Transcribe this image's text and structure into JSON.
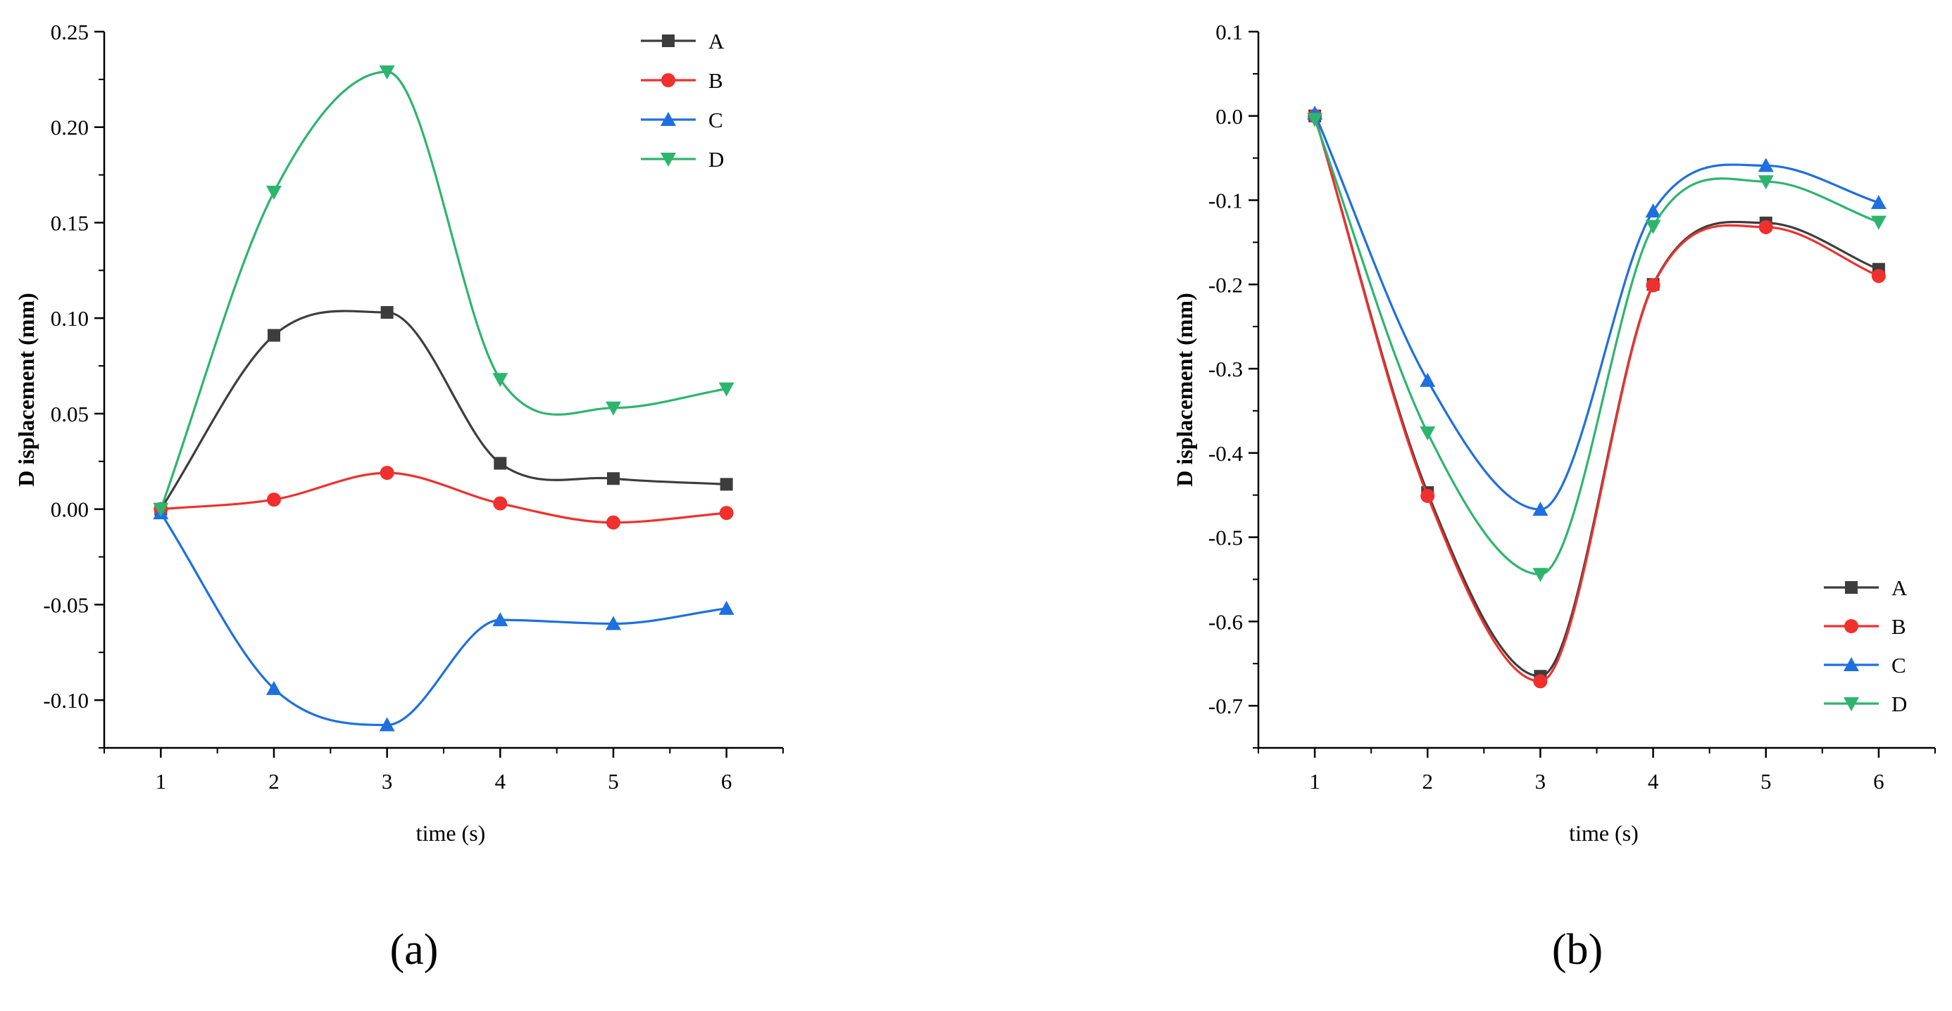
{
  "chart_data": [
    {
      "type": "line",
      "panel_label": "(a)",
      "x": [
        1,
        2,
        3,
        4,
        5,
        6
      ],
      "xlim": [
        0.5,
        6.5
      ],
      "ylim": [
        -0.125,
        0.25
      ],
      "xticks": [
        1,
        2,
        3,
        4,
        5,
        6
      ],
      "yticks": [
        -0.1,
        -0.05,
        0.0,
        0.05,
        0.1,
        0.15,
        0.2,
        0.25
      ],
      "ytick_labels": [
        "-0.10",
        "-0.05",
        "0.00",
        "0.05",
        "0.10",
        "0.15",
        "0.20",
        "0.25"
      ],
      "xlabel": "time (s)",
      "ylabel": "D isplacement (mm)",
      "legend_position": "top-right",
      "series": [
        {
          "name": "A",
          "color": "#3d3d3d",
          "marker": "square",
          "values": [
            0.0,
            0.091,
            0.103,
            0.024,
            0.016,
            0.013
          ]
        },
        {
          "name": "B",
          "color": "#f0302d",
          "marker": "circle",
          "values": [
            0.0,
            0.005,
            0.019,
            0.003,
            -0.007,
            -0.002
          ]
        },
        {
          "name": "C",
          "color": "#1f6fe0",
          "marker": "triangle-up",
          "values": [
            -0.002,
            -0.094,
            -0.113,
            -0.058,
            -0.06,
            -0.052
          ]
        },
        {
          "name": "D",
          "color": "#2db56e",
          "marker": "triangle-down",
          "values": [
            0.0,
            0.166,
            0.229,
            0.068,
            0.053,
            0.063
          ]
        }
      ]
    },
    {
      "type": "line",
      "panel_label": "(b)",
      "x": [
        1,
        2,
        3,
        4,
        5,
        6
      ],
      "xlim": [
        0.5,
        6.5
      ],
      "ylim": [
        -0.75,
        0.1
      ],
      "xticks": [
        1,
        2,
        3,
        4,
        5,
        6
      ],
      "yticks": [
        -0.7,
        -0.6,
        -0.5,
        -0.4,
        -0.3,
        -0.2,
        -0.1,
        0.0,
        0.1
      ],
      "ytick_labels": [
        "-0.7",
        "-0.6",
        "-0.5",
        "-0.4",
        "-0.3",
        "-0.2",
        "-0.1",
        "0.0",
        "0.1"
      ],
      "xlabel": "time (s)",
      "ylabel": "D isplacement (mm)",
      "legend_position": "bottom-right",
      "series": [
        {
          "name": "A",
          "color": "#3d3d3d",
          "marker": "square",
          "values": [
            0.0,
            -0.447,
            -0.665,
            -0.2,
            -0.127,
            -0.182
          ]
        },
        {
          "name": "B",
          "color": "#f0302d",
          "marker": "circle",
          "values": [
            0.0,
            -0.451,
            -0.671,
            -0.201,
            -0.132,
            -0.19
          ]
        },
        {
          "name": "C",
          "color": "#1f6fe0",
          "marker": "triangle-up",
          "values": [
            0.003,
            -0.314,
            -0.467,
            -0.113,
            -0.059,
            -0.103
          ]
        },
        {
          "name": "D",
          "color": "#2db56e",
          "marker": "triangle-down",
          "values": [
            -0.004,
            -0.376,
            -0.544,
            -0.131,
            -0.078,
            -0.126
          ]
        }
      ]
    }
  ]
}
